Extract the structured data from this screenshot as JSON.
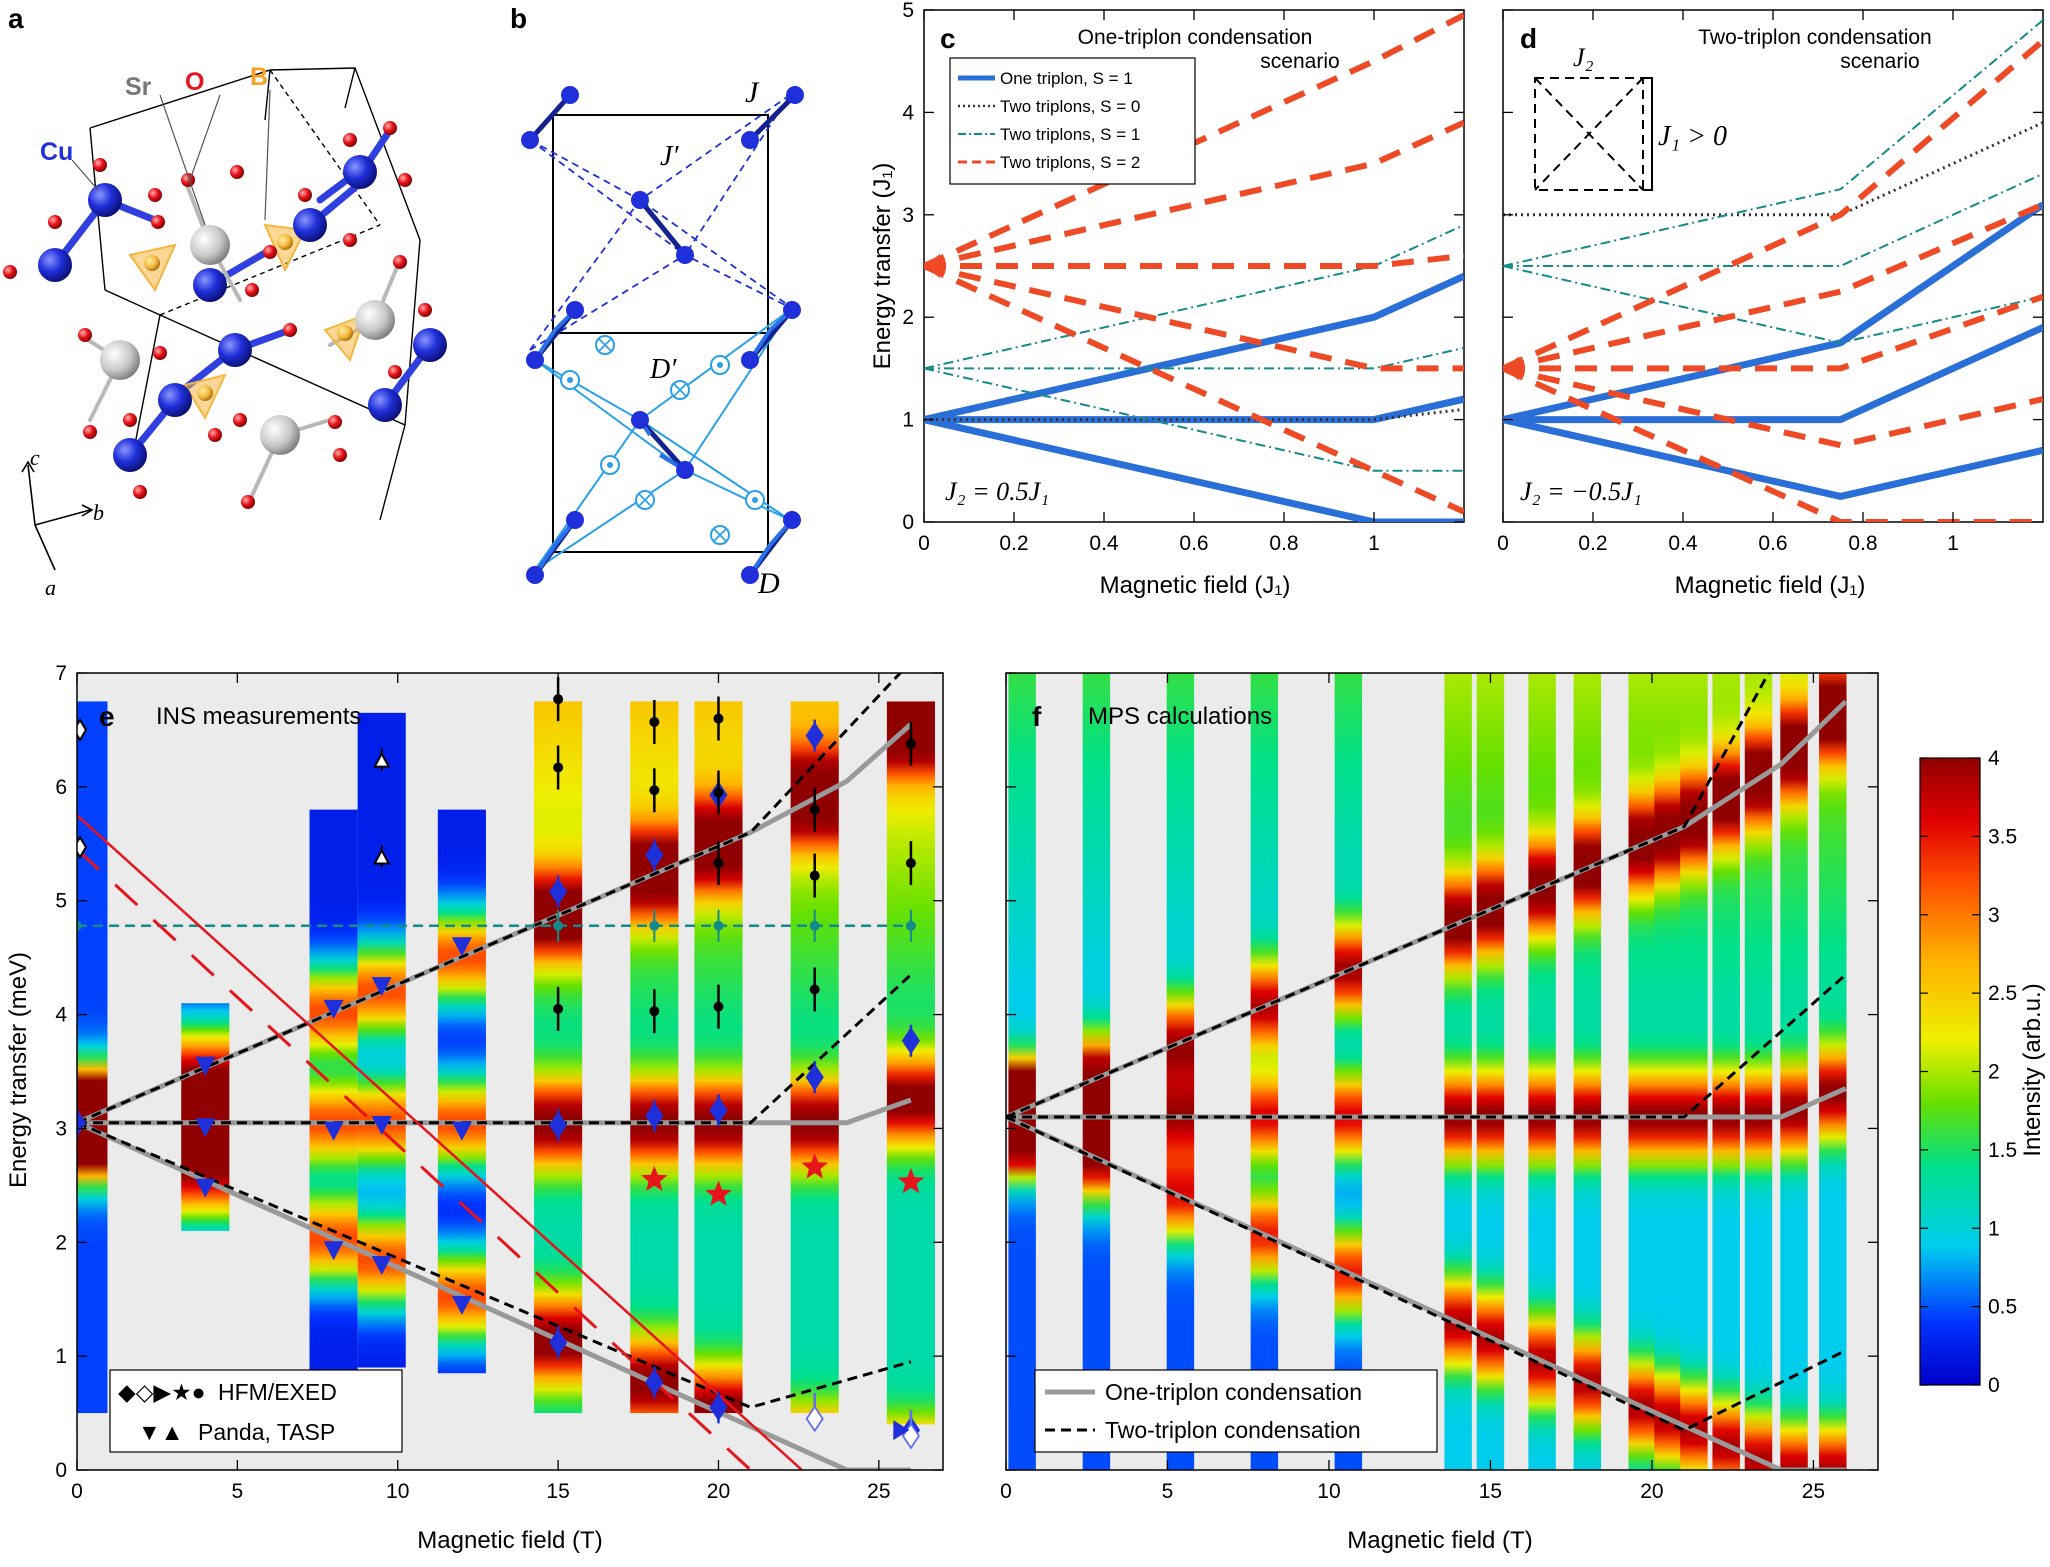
{
  "panels": {
    "a": {
      "letter": "a",
      "atom_labels": {
        "cu": "Cu",
        "sr": "Sr",
        "o": "O",
        "b": "B"
      },
      "axes": {
        "c": "c",
        "b": "b",
        "a": "a"
      },
      "colors": {
        "cu": "#1f2fd9",
        "o": "#e8141c",
        "sr": "#c8c8c8",
        "b": "#f5b640"
      }
    },
    "b": {
      "letter": "b",
      "labels": {
        "J": "J",
        "Jp": "J′",
        "Dp": "D′",
        "D": "D"
      }
    },
    "c": {
      "letter": "c",
      "title_line1": "One-triplon condensation",
      "title_line2": "scenario",
      "annotation": "J₂ = 0.5J₁",
      "legend": [
        {
          "label": "One triplon, S = 1",
          "style": "solid-blue"
        },
        {
          "label": "Two triplons, S = 0",
          "style": "dotted-black"
        },
        {
          "label": "Two triplons, S = 1",
          "style": "dashdot-teal"
        },
        {
          "label": "Two triplons, S = 2",
          "style": "dashed-orange"
        }
      ]
    },
    "d": {
      "letter": "d",
      "title_line1": "Two-triplon condensation",
      "title_line2": "scenario",
      "annotation": "J₂ = −0.5J₁",
      "inset_j2": "J₂",
      "inset_j1": "J₁ > 0"
    },
    "e": {
      "letter": "e",
      "title": "INS measurements",
      "legend": [
        {
          "symbols": "◆◇▶★●",
          "label": "HFM/EXED"
        },
        {
          "symbols": "▼▲",
          "label": "Panda, TASP"
        }
      ]
    },
    "f": {
      "letter": "f",
      "title": "MPS calculations",
      "legend": [
        {
          "label": "One-triplon condensation",
          "style": "solid-gray"
        },
        {
          "label": "Two-triplon condensation",
          "style": "dashed-black"
        }
      ]
    }
  },
  "axes": {
    "cd": {
      "xlabel": "Magnetic field (J₁)",
      "ylabel": "Energy transfer (J₁)",
      "c_xticks": [
        "0",
        "0.2",
        "0.4",
        "0.6",
        "0.8",
        "1"
      ],
      "d_xticks": [
        "0",
        "0.2",
        "0.4",
        "0.6",
        "0.8",
        "1"
      ],
      "yticks": [
        "0",
        "1",
        "2",
        "3",
        "4",
        "5"
      ]
    },
    "ef": {
      "xlabel": "Magnetic field (T)",
      "ylabel": "Energy transfer (meV)",
      "xticks": [
        "0",
        "5",
        "10",
        "15",
        "20",
        "25"
      ],
      "yticks": [
        "0",
        "1",
        "2",
        "3",
        "4",
        "5",
        "6",
        "7"
      ]
    },
    "colorbar": {
      "label": "Intensity (arb.u.)",
      "ticks": [
        "0",
        "0.5",
        "1",
        "1.5",
        "2",
        "2.5",
        "3",
        "3.5",
        "4"
      ]
    }
  },
  "chart_data": [
    {
      "type": "line",
      "panel": "c",
      "title": "One-triplon condensation scenario",
      "xlabel": "Magnetic field (J1)",
      "ylabel": "Energy transfer (J1)",
      "xlim": [
        0,
        1.2
      ],
      "ylim": [
        0,
        5
      ],
      "series": [
        {
          "name": "One triplon, S = 1",
          "style": "solid-blue",
          "x": [
            0,
            1,
            1.2
          ],
          "y": [
            1,
            2,
            2.4
          ]
        },
        {
          "name": "One triplon, S = 1",
          "style": "solid-blue",
          "x": [
            0,
            1,
            1.2
          ],
          "y": [
            1,
            1,
            1.2
          ]
        },
        {
          "name": "One triplon, S = 1",
          "style": "solid-blue",
          "x": [
            0,
            1,
            1.2
          ],
          "y": [
            1,
            0,
            0
          ]
        },
        {
          "name": "Two triplons, S = 0",
          "style": "dotted-black",
          "x": [
            0,
            1,
            1.2
          ],
          "y": [
            1,
            1,
            1.1
          ]
        },
        {
          "name": "Two triplons, S = 1",
          "style": "dashdot-teal",
          "x": [
            0,
            1,
            1.2
          ],
          "y": [
            1.5,
            2.5,
            2.9
          ]
        },
        {
          "name": "Two triplons, S = 1",
          "style": "dashdot-teal",
          "x": [
            0,
            1,
            1.2
          ],
          "y": [
            1.5,
            1.5,
            1.7
          ]
        },
        {
          "name": "Two triplons, S = 1",
          "style": "dashdot-teal",
          "x": [
            0,
            1,
            1.2
          ],
          "y": [
            1.5,
            0.5,
            0.5
          ]
        },
        {
          "name": "Two triplons, S = 2",
          "style": "dashed-orange",
          "x": [
            0,
            1,
            1.2
          ],
          "y": [
            2.5,
            4.5,
            4.95
          ]
        },
        {
          "name": "Two triplons, S = 2",
          "style": "dashed-orange",
          "x": [
            0,
            1,
            1.2
          ],
          "y": [
            2.5,
            3.5,
            3.9
          ]
        },
        {
          "name": "Two triplons, S = 2",
          "style": "dashed-orange",
          "x": [
            0,
            1,
            1.2
          ],
          "y": [
            2.5,
            2.5,
            2.6
          ]
        },
        {
          "name": "Two triplons, S = 2",
          "style": "dashed-orange",
          "x": [
            0,
            1,
            1.2
          ],
          "y": [
            2.5,
            1.5,
            1.5
          ]
        },
        {
          "name": "Two triplons, S = 2",
          "style": "dashed-orange",
          "x": [
            0,
            1,
            1.2
          ],
          "y": [
            2.5,
            0.5,
            0.1
          ]
        }
      ]
    },
    {
      "type": "line",
      "panel": "d",
      "title": "Two-triplon condensation scenario",
      "xlabel": "Magnetic field (J1)",
      "ylabel": "Energy transfer (J1)",
      "xlim": [
        0,
        1.2
      ],
      "ylim": [
        0,
        5
      ],
      "series": [
        {
          "name": "One triplon, S = 1",
          "style": "solid-blue",
          "x": [
            0,
            0.75,
            1.2
          ],
          "y": [
            1,
            1.75,
            3.1
          ]
        },
        {
          "name": "One triplon, S = 1",
          "style": "solid-blue",
          "x": [
            0,
            0.75,
            1.2
          ],
          "y": [
            1,
            1,
            1.9
          ]
        },
        {
          "name": "One triplon, S = 1",
          "style": "solid-blue",
          "x": [
            0,
            0.75,
            1.2
          ],
          "y": [
            1,
            0.25,
            0.7
          ]
        },
        {
          "name": "Two triplons, S = 0",
          "style": "dotted-black",
          "x": [
            0,
            0.75,
            1.2
          ],
          "y": [
            3,
            3,
            3.9
          ]
        },
        {
          "name": "Two triplons, S = 1",
          "style": "dashdot-teal",
          "x": [
            0,
            0.75,
            1.2
          ],
          "y": [
            2.5,
            3.25,
            4.9
          ]
        },
        {
          "name": "Two triplons, S = 1",
          "style": "dashdot-teal",
          "x": [
            0,
            0.75,
            1.2
          ],
          "y": [
            2.5,
            2.5,
            3.4
          ]
        },
        {
          "name": "Two triplons, S = 1",
          "style": "dashdot-teal",
          "x": [
            0,
            0.75,
            1.2
          ],
          "y": [
            2.5,
            1.75,
            2.2
          ]
        },
        {
          "name": "Two triplons, S = 2",
          "style": "dashed-orange",
          "x": [
            0,
            0.75,
            1.2
          ],
          "y": [
            1.5,
            3,
            4.7
          ]
        },
        {
          "name": "Two triplons, S = 2",
          "style": "dashed-orange",
          "x": [
            0,
            0.75,
            1.2
          ],
          "y": [
            1.5,
            2.25,
            3.1
          ]
        },
        {
          "name": "Two triplons, S = 2",
          "style": "dashed-orange",
          "x": [
            0,
            0.75,
            1.2
          ],
          "y": [
            1.5,
            1.5,
            2.2
          ]
        },
        {
          "name": "Two triplons, S = 2",
          "style": "dashed-orange",
          "x": [
            0,
            0.75,
            1.2
          ],
          "y": [
            1.5,
            0.75,
            1.2
          ]
        },
        {
          "name": "Two triplons, S = 2",
          "style": "dashed-orange",
          "x": [
            0,
            0.75,
            1.2
          ],
          "y": [
            1.5,
            0,
            0
          ]
        }
      ]
    },
    {
      "type": "heatmap",
      "panel": "e",
      "title": "INS measurements",
      "xlabel": "Magnetic field (T)",
      "ylabel": "Energy transfer (meV)",
      "xlim": [
        0,
        27
      ],
      "ylim": [
        0,
        7
      ],
      "columns": [
        {
          "x": 0.2,
          "ymin": 0.5,
          "ymax": 6.75
        },
        {
          "x": 4,
          "ymin": 2.1,
          "ymax": 4.1
        },
        {
          "x": 8,
          "ymin": 0.85,
          "ymax": 5.8
        },
        {
          "x": 9.5,
          "ymin": 0.9,
          "ymax": 6.65
        },
        {
          "x": 12,
          "ymin": 0.85,
          "ymax": 5.8
        },
        {
          "x": 15,
          "ymin": 0.5,
          "ymax": 6.75
        },
        {
          "x": 18,
          "ymin": 0.5,
          "ymax": 6.75
        },
        {
          "x": 20,
          "ymin": 0.5,
          "ymax": 6.75
        },
        {
          "x": 23,
          "ymin": 0.5,
          "ymax": 6.75
        },
        {
          "x": 26,
          "ymin": 0.4,
          "ymax": 6.75
        }
      ],
      "lines": {
        "gray_one_triplon": [
          {
            "x": [
              0,
              21,
              24,
              26
            ],
            "y": [
              3.05,
              5.6,
              6.05,
              6.55
            ]
          },
          {
            "x": [
              0,
              24,
              26
            ],
            "y": [
              3.05,
              3.05,
              3.25
            ]
          },
          {
            "x": [
              0,
              24,
              26
            ],
            "y": [
              3.05,
              0,
              0
            ]
          }
        ],
        "black_two_triplon": [
          {
            "x": [
              0,
              21,
              26
            ],
            "y": [
              3.05,
              5.6,
              7.1
            ]
          },
          {
            "x": [
              0,
              21,
              26
            ],
            "y": [
              3.05,
              3.05,
              4.35
            ]
          },
          {
            "x": [
              0,
              21,
              26
            ],
            "y": [
              3.05,
              0.55,
              0.95
            ]
          }
        ],
        "teal_dashed": {
          "x": [
            0,
            26
          ],
          "y": [
            4.78,
            4.78
          ]
        },
        "red_solid": {
          "x": [
            0,
            22.6
          ],
          "y": [
            5.75,
            0
          ]
        },
        "red_dashed": {
          "x": [
            0,
            21
          ],
          "y": [
            5.45,
            0
          ]
        }
      },
      "points": {
        "blue_diamond": [
          [
            0,
            3.05
          ],
          [
            15,
            5.08
          ],
          [
            18,
            5.4
          ],
          [
            20,
            5.93
          ],
          [
            23,
            6.45
          ],
          [
            15,
            3.03
          ],
          [
            18,
            3.11
          ],
          [
            20,
            3.16
          ],
          [
            23,
            3.45
          ],
          [
            26,
            3.77
          ],
          [
            15,
            1.12
          ],
          [
            18,
            0.77
          ],
          [
            20,
            0.55
          ],
          [
            26,
            0.35
          ]
        ],
        "blue_open_diamond": [
          [
            23,
            0.45
          ],
          [
            26,
            0.3
          ]
        ],
        "blue_down_triangle": [
          [
            4,
            3.55
          ],
          [
            8,
            4.05
          ],
          [
            9.5,
            4.25
          ],
          [
            12,
            4.6
          ],
          [
            4,
            3.01
          ],
          [
            8,
            2.98
          ],
          [
            9.5,
            3.03
          ],
          [
            12,
            2.98
          ],
          [
            4,
            2.48
          ],
          [
            8,
            1.93
          ],
          [
            9.5,
            1.8
          ],
          [
            12,
            1.45
          ]
        ],
        "black_dot": [
          [
            15,
            6.77
          ],
          [
            18,
            6.57
          ],
          [
            20,
            6.6
          ],
          [
            26,
            6.38
          ],
          [
            15,
            6.17
          ],
          [
            18,
            5.97
          ],
          [
            20,
            5.33
          ],
          [
            23,
            5.8
          ],
          [
            26,
            5.33
          ],
          [
            23,
            5.22
          ],
          [
            15,
            4.05
          ],
          [
            18,
            4.03
          ],
          [
            20,
            4.07
          ],
          [
            23,
            4.22
          ],
          [
            20,
            5.95
          ]
        ],
        "black_open_diamond": [
          [
            0,
            6.5
          ],
          [
            0,
            5.47
          ]
        ],
        "black_open_triangle": [
          [
            9.5,
            6.23
          ],
          [
            9.5,
            5.38
          ]
        ],
        "red_star": [
          [
            18,
            2.55
          ],
          [
            20,
            2.42
          ],
          [
            23,
            2.66
          ],
          [
            26,
            2.53
          ]
        ],
        "teal_dot": [
          [
            0,
            4.78
          ],
          [
            15,
            4.78
          ],
          [
            18,
            4.78
          ],
          [
            20,
            4.78
          ],
          [
            23,
            4.78
          ],
          [
            26,
            4.78
          ]
        ]
      }
    },
    {
      "type": "heatmap",
      "panel": "f",
      "title": "MPS calculations",
      "xlabel": "Magnetic field (T)",
      "ylabel": "Energy transfer (meV)",
      "xlim": [
        0,
        27
      ],
      "ylim": [
        0,
        7
      ],
      "columns_x": [
        0.5,
        2.8,
        5.4,
        8,
        10.6,
        14,
        15,
        16.6,
        18,
        19.7,
        20.5,
        21.3,
        22.3,
        23.3,
        24.4,
        25.6
      ],
      "lines": {
        "gray_one_triplon": [
          {
            "x": [
              0,
              21,
              24,
              26
            ],
            "y": [
              3.1,
              5.65,
              6.2,
              6.75
            ]
          },
          {
            "x": [
              0,
              24,
              26
            ],
            "y": [
              3.1,
              3.1,
              3.35
            ]
          },
          {
            "x": [
              0,
              24,
              26
            ],
            "y": [
              3.1,
              0,
              0
            ]
          }
        ],
        "black_two_triplon": [
          {
            "x": [
              0,
              21,
              24
            ],
            "y": [
              3.1,
              5.65,
              7.2
            ]
          },
          {
            "x": [
              0,
              21,
              26
            ],
            "y": [
              3.1,
              3.1,
              4.35
            ]
          },
          {
            "x": [
              0,
              21,
              26
            ],
            "y": [
              3.1,
              0.35,
              1.05
            ]
          }
        ]
      }
    }
  ]
}
